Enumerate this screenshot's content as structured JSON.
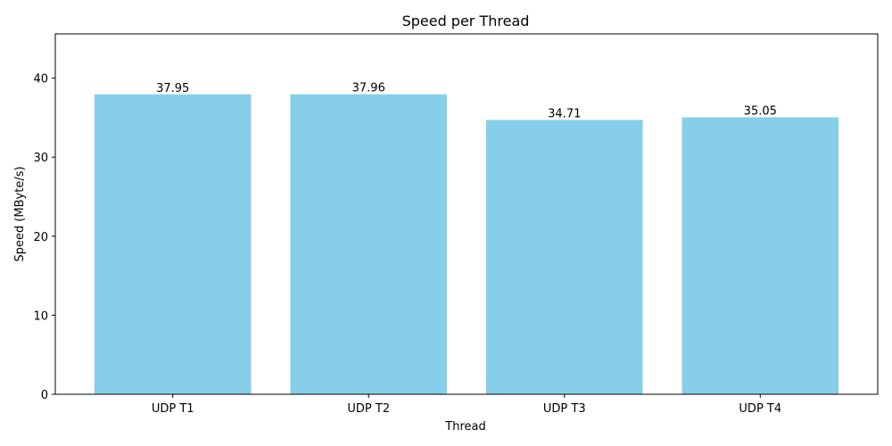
{
  "chart_data": {
    "type": "bar",
    "title": "Speed per Thread",
    "xlabel": "Thread",
    "ylabel": "Speed (MByte/s)",
    "categories": [
      "UDP T1",
      "UDP T2",
      "UDP T3",
      "UDP T4"
    ],
    "values": [
      37.95,
      37.96,
      34.71,
      35.05
    ],
    "value_labels": [
      "37.95",
      "37.96",
      "34.71",
      "35.05"
    ],
    "ylim": [
      0,
      45.6
    ],
    "yticks": [
      0,
      10,
      20,
      30,
      40
    ],
    "ytick_labels": [
      "0",
      "10",
      "20",
      "30",
      "40"
    ],
    "bar_color": "#87ceeb",
    "grid": false,
    "legend": "none"
  }
}
